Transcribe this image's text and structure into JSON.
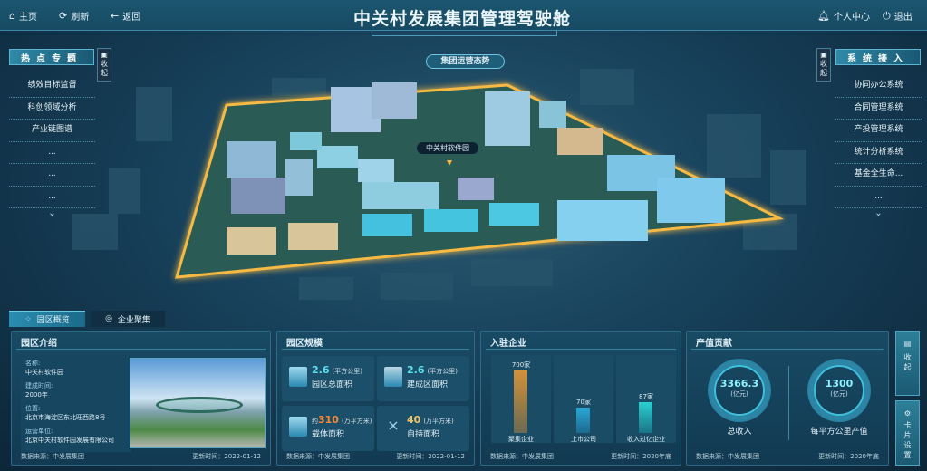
{
  "header": {
    "title": "中关村发展集团管理驾驶舱",
    "home": "主页",
    "refresh": "刷新",
    "back": "返回",
    "profile": "个人中心",
    "logout": "退出"
  },
  "left_panel": {
    "title": "热点专题",
    "collapse": "收起",
    "items": [
      "绩效目标监督",
      "科创领域分析",
      "产业链图谱",
      "...",
      "...",
      "..."
    ]
  },
  "right_panel": {
    "title": "系统接入",
    "collapse": "收起",
    "items": [
      "协同办公系统",
      "合同管理系统",
      "产投管理系统",
      "统计分析系统",
      "基金全生命...",
      "..."
    ]
  },
  "map": {
    "center_label": "集团运营态势",
    "park_label": "中关村软件园",
    "boundary_color": "#f5b944"
  },
  "tabs": [
    {
      "label": "园区概览",
      "active": true
    },
    {
      "label": "企业聚集",
      "active": false
    }
  ],
  "cards": {
    "intro": {
      "title": "园区介绍",
      "fields": [
        {
          "k": "名称:",
          "v": "中关村软件园"
        },
        {
          "k": "建成时间:",
          "v": "2000年"
        },
        {
          "k": "位置:",
          "v": "北京市海淀区东北旺西路8号"
        },
        {
          "k": "运营单位:",
          "v": "北京中关村软件园发展有限公司"
        }
      ],
      "source": "数据来源：中发展集团",
      "updated": "更新时间：2022-01-12"
    },
    "scale": {
      "title": "园区规模",
      "stats": [
        {
          "prefix": "",
          "value": "2.6",
          "unit": "(平方公里)",
          "name": "园区总面积",
          "color": "#5fe0f0"
        },
        {
          "prefix": "",
          "value": "2.6",
          "unit": "(平方公里)",
          "name": "建成区面积",
          "color": "#5fe0f0"
        },
        {
          "prefix": "约",
          "value": "310",
          "unit": "(万平方米)",
          "name": "载体面积",
          "color": "#f08a3c"
        },
        {
          "prefix": "",
          "value": "40",
          "unit": "(万平方米)",
          "name": "自持面积",
          "color": "#f2c46a"
        }
      ],
      "source": "数据来源：中发展集团",
      "updated": "更新时间：2022-01-12"
    },
    "companies": {
      "title": "入驻企业",
      "bars": [
        {
          "label": "聚集企业",
          "value": "700家",
          "color": "#c98a3a"
        },
        {
          "label": "上市公司",
          "value": "70家",
          "color": "#2a9fd0"
        },
        {
          "label": "收入过亿企业",
          "value": "87家",
          "color": "#28c4c8"
        }
      ],
      "source": "数据来源：中发展集团",
      "updated": "更新时间：2020年底"
    },
    "output": {
      "title": "产值贡献",
      "rings": [
        {
          "value": "3366.3",
          "unit": "(亿元)",
          "name": "总收入"
        },
        {
          "value": "1300",
          "unit": "(亿元)",
          "name": "每平方公里产值"
        }
      ],
      "source": "数据来源：中发展集团",
      "updated": "更新时间：2020年底"
    }
  },
  "right_buttons": {
    "collapse": "收起",
    "card_settings": "卡片设置"
  }
}
